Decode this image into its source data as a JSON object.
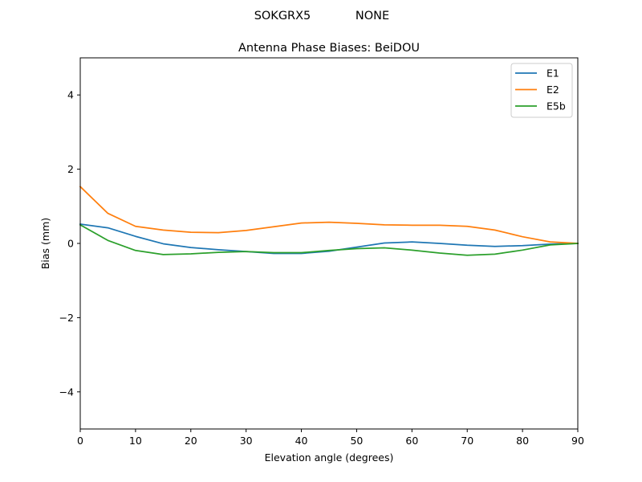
{
  "figure": {
    "suptitle_left": "SOKGRX5",
    "suptitle_right": "NONE"
  },
  "chart_data": {
    "type": "line",
    "title": "Antenna Phase Biases: BeiDOU",
    "xlabel": "Elevation angle (degrees)",
    "ylabel": "Bias (mm)",
    "xlim": [
      0,
      90
    ],
    "ylim": [
      -5,
      5
    ],
    "xticks": [
      0,
      10,
      20,
      30,
      40,
      50,
      60,
      70,
      80,
      90
    ],
    "yticks": [
      -4,
      -2,
      0,
      2,
      4
    ],
    "ytick_labels": [
      "−4",
      "−2",
      "0",
      "2",
      "4"
    ],
    "grid": false,
    "legend_position": "top-right",
    "x": [
      0,
      5,
      10,
      15,
      20,
      25,
      30,
      35,
      40,
      45,
      50,
      55,
      60,
      65,
      70,
      75,
      80,
      85,
      90
    ],
    "series": [
      {
        "name": "E1",
        "color": "#1f77b4",
        "values": [
          0.52,
          0.42,
          0.19,
          -0.01,
          -0.11,
          -0.17,
          -0.22,
          -0.27,
          -0.27,
          -0.21,
          -0.1,
          0.01,
          0.04,
          0.0,
          -0.05,
          -0.08,
          -0.06,
          -0.02,
          0.0
        ]
      },
      {
        "name": "E2",
        "color": "#ff7f0e",
        "values": [
          1.53,
          0.81,
          0.46,
          0.36,
          0.3,
          0.29,
          0.35,
          0.45,
          0.55,
          0.57,
          0.54,
          0.5,
          0.49,
          0.49,
          0.46,
          0.36,
          0.18,
          0.04,
          0.0
        ]
      },
      {
        "name": "E5b",
        "color": "#2ca02c",
        "values": [
          0.5,
          0.08,
          -0.19,
          -0.3,
          -0.28,
          -0.24,
          -0.22,
          -0.25,
          -0.25,
          -0.19,
          -0.14,
          -0.12,
          -0.18,
          -0.26,
          -0.32,
          -0.29,
          -0.18,
          -0.04,
          0.0
        ]
      }
    ]
  }
}
